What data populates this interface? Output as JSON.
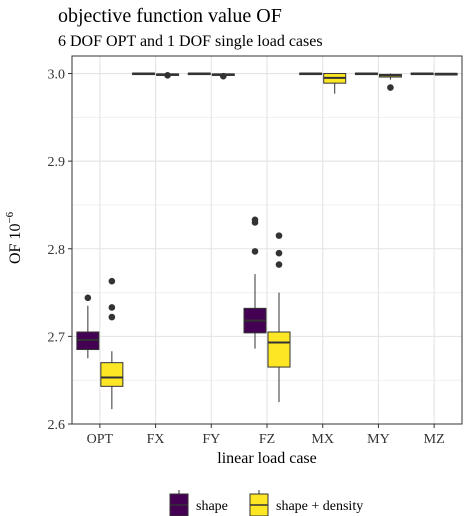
{
  "chart_data": {
    "type": "boxplot",
    "title": "objective function value OF",
    "subtitle": "6 DOF OPT and 1 DOF single load cases",
    "xlabel": "linear load case",
    "ylabel": "OF 10",
    "ylabel_superscript": "−6",
    "ylim": [
      2.6,
      3.02
    ],
    "yticks": [
      2.6,
      2.7,
      2.8,
      2.9,
      3.0
    ],
    "ytick_labels": [
      "2.6",
      "2.7",
      "2.8",
      "2.9",
      "3.0"
    ],
    "categories": [
      "OPT",
      "FX",
      "FY",
      "FZ",
      "MX",
      "MY",
      "MZ"
    ],
    "grid": true,
    "legend_position": "bottom",
    "series": [
      {
        "name": "shape",
        "color": "#440154",
        "boxes": [
          {
            "category": "OPT",
            "whisker_low": 2.675,
            "q1": 2.685,
            "median": 2.696,
            "q3": 2.705,
            "whisker_high": 2.735,
            "outliers": [
              2.744
            ]
          },
          {
            "category": "FX",
            "whisker_low": 2.999,
            "q1": 2.9995,
            "median": 3.0,
            "q3": 3.0005,
            "whisker_high": 3.001,
            "outliers": []
          },
          {
            "category": "FY",
            "whisker_low": 2.999,
            "q1": 2.9995,
            "median": 3.0,
            "q3": 3.0005,
            "whisker_high": 3.001,
            "outliers": []
          },
          {
            "category": "FZ",
            "whisker_low": 2.686,
            "q1": 2.704,
            "median": 2.718,
            "q3": 2.732,
            "whisker_high": 2.771,
            "outliers": [
              2.797,
              2.83,
              2.833
            ]
          },
          {
            "category": "MX",
            "whisker_low": 2.999,
            "q1": 2.9995,
            "median": 3.0,
            "q3": 3.0005,
            "whisker_high": 3.001,
            "outliers": []
          },
          {
            "category": "MY",
            "whisker_low": 2.999,
            "q1": 2.9995,
            "median": 3.0,
            "q3": 3.0005,
            "whisker_high": 3.001,
            "outliers": []
          },
          {
            "category": "MZ",
            "whisker_low": 2.999,
            "q1": 2.9995,
            "median": 3.0,
            "q3": 3.0005,
            "whisker_high": 3.001,
            "outliers": []
          }
        ]
      },
      {
        "name": "shape + density",
        "color": "#FDE725",
        "boxes": [
          {
            "category": "OPT",
            "whisker_low": 2.617,
            "q1": 2.643,
            "median": 2.653,
            "q3": 2.67,
            "whisker_high": 2.683,
            "outliers": [
              2.722,
              2.733,
              2.763
            ]
          },
          {
            "category": "FX",
            "whisker_low": 2.998,
            "q1": 2.9985,
            "median": 2.999,
            "q3": 2.9995,
            "whisker_high": 3.0,
            "outliers": [
              2.998
            ]
          },
          {
            "category": "FY",
            "whisker_low": 2.998,
            "q1": 2.9985,
            "median": 2.999,
            "q3": 2.9995,
            "whisker_high": 3.0,
            "outliers": [
              2.997
            ]
          },
          {
            "category": "FZ",
            "whisker_low": 2.625,
            "q1": 2.665,
            "median": 2.693,
            "q3": 2.705,
            "whisker_high": 2.75,
            "outliers": [
              2.782,
              2.795,
              2.815
            ]
          },
          {
            "category": "MX",
            "whisker_low": 2.977,
            "q1": 2.989,
            "median": 2.995,
            "q3": 3.0,
            "whisker_high": 3.0,
            "outliers": []
          },
          {
            "category": "MY",
            "whisker_low": 2.993,
            "q1": 2.996,
            "median": 2.998,
            "q3": 2.999,
            "whisker_high": 3.0,
            "outliers": [
              2.984
            ]
          },
          {
            "category": "MZ",
            "whisker_low": 2.999,
            "q1": 2.9993,
            "median": 2.9997,
            "q3": 3.0,
            "whisker_high": 3.0,
            "outliers": []
          }
        ]
      }
    ]
  }
}
